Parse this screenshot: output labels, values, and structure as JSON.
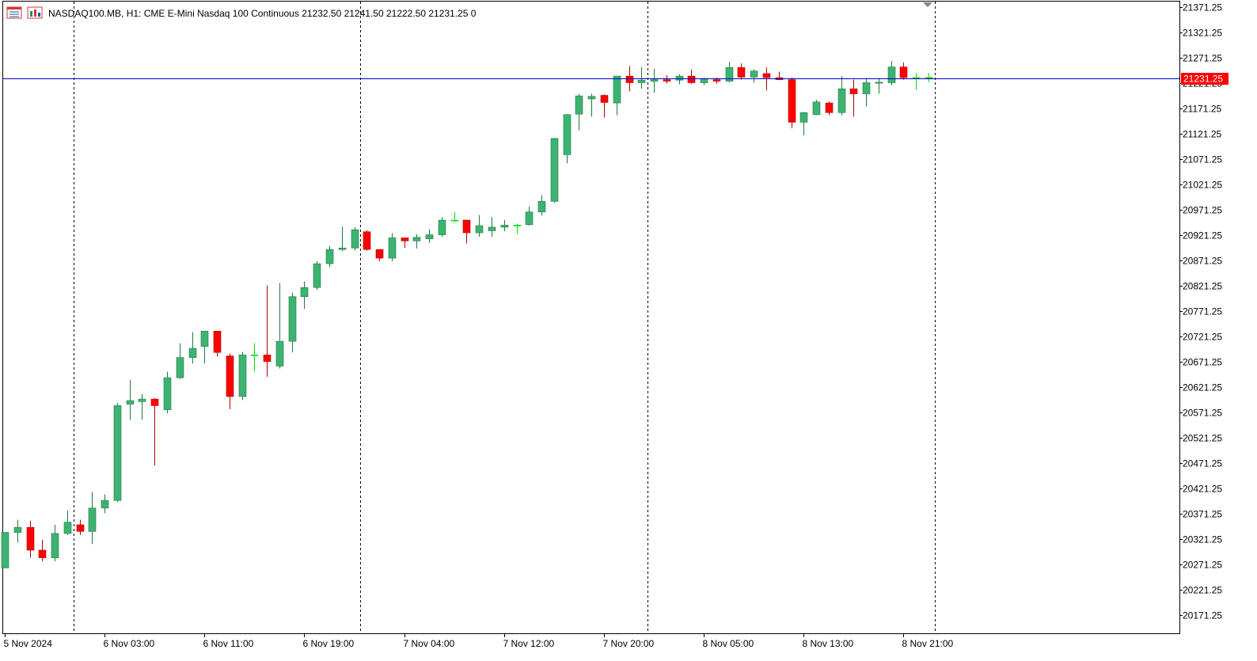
{
  "header": {
    "symbol": "NASDAQ100.MB",
    "timeframe": "H1:",
    "description": "CME E-Mini Nasdaq 100 Continuous",
    "ohlc": "21232.50 21241.50 21222.50 21231.25",
    "volume": "0"
  },
  "colors": {
    "bull": "#3cb371",
    "bear": "#ff0000",
    "wick_bull": "#1f7a3e",
    "wick_bear": "#b00000",
    "doji": "#00e000",
    "price_line": "#0000cd",
    "price_tag": "#ff0000",
    "grid": "#000000",
    "axis": "#000000"
  },
  "icons": [
    "chart-window-icon",
    "chart-properties-icon",
    "shift-marker-icon"
  ],
  "chart_data": {
    "type": "candlestick",
    "symbol": "NASDAQ100.MB",
    "timeframe": "H1",
    "current_price": 21231.25,
    "current_price_label": "21231.25",
    "y_range": [
      20136,
      21382
    ],
    "y_ticks": [
      "21371.25",
      "21321.25",
      "21271.25",
      "21221.25",
      "21171.25",
      "21121.25",
      "21071.25",
      "21021.25",
      "20971.25",
      "20921.25",
      "20871.25",
      "20821.25",
      "20771.25",
      "20721.25",
      "20671.25",
      "20621.25",
      "20571.25",
      "20521.25",
      "20471.25",
      "20421.25",
      "20371.25",
      "20321.25",
      "20271.25",
      "20221.25",
      "20171.25"
    ],
    "x_labels": [
      {
        "label": "5 Nov 2024",
        "bar": 0
      },
      {
        "label": "6 Nov 03:00",
        "bar": 8
      },
      {
        "label": "6 Nov 11:00",
        "bar": 16
      },
      {
        "label": "6 Nov 19:00",
        "bar": 24
      },
      {
        "label": "7 Nov 04:00",
        "bar": 32
      },
      {
        "label": "7 Nov 12:00",
        "bar": 40
      },
      {
        "label": "7 Nov 20:00",
        "bar": 48
      },
      {
        "label": "8 Nov 05:00",
        "bar": 56
      },
      {
        "label": "8 Nov 13:00",
        "bar": 64
      },
      {
        "label": "8 Nov 21:00",
        "bar": 72
      }
    ],
    "day_separators": [
      5.5,
      28.5,
      51.5,
      74.5
    ],
    "candles": [
      {
        "o": 20265,
        "h": 20335,
        "l": 20265,
        "c": 20335
      },
      {
        "o": 20335,
        "h": 20360,
        "l": 20315,
        "c": 20345
      },
      {
        "o": 20345,
        "h": 20358,
        "l": 20285,
        "c": 20300
      },
      {
        "o": 20300,
        "h": 20320,
        "l": 20278,
        "c": 20285
      },
      {
        "o": 20285,
        "h": 20350,
        "l": 20278,
        "c": 20333
      },
      {
        "o": 20333,
        "h": 20378,
        "l": 20330,
        "c": 20355
      },
      {
        "o": 20350,
        "h": 20360,
        "l": 20330,
        "c": 20337
      },
      {
        "o": 20337,
        "h": 20415,
        "l": 20312,
        "c": 20383
      },
      {
        "o": 20383,
        "h": 20410,
        "l": 20373,
        "c": 20398
      },
      {
        "o": 20398,
        "h": 20590,
        "l": 20395,
        "c": 20585
      },
      {
        "o": 20588,
        "h": 20636,
        "l": 20557,
        "c": 20595
      },
      {
        "o": 20593,
        "h": 20608,
        "l": 20557,
        "c": 20598
      },
      {
        "o": 20598,
        "h": 20600,
        "l": 20467,
        "c": 20585
      },
      {
        "o": 20577,
        "h": 20652,
        "l": 20570,
        "c": 20640
      },
      {
        "o": 20640,
        "h": 20708,
        "l": 20638,
        "c": 20680
      },
      {
        "o": 20680,
        "h": 20730,
        "l": 20668,
        "c": 20698
      },
      {
        "o": 20702,
        "h": 20730,
        "l": 20668,
        "c": 20732
      },
      {
        "o": 20732,
        "h": 20732,
        "l": 20682,
        "c": 20690
      },
      {
        "o": 20683,
        "h": 20688,
        "l": 20578,
        "c": 20603
      },
      {
        "o": 20603,
        "h": 20691,
        "l": 20596,
        "c": 20685
      },
      {
        "o": 20684,
        "h": 20708,
        "l": 20653,
        "c": 20685
      },
      {
        "o": 20685,
        "h": 20822,
        "l": 20642,
        "c": 20672
      },
      {
        "o": 20663,
        "h": 20827,
        "l": 20658,
        "c": 20712
      },
      {
        "o": 20712,
        "h": 20808,
        "l": 20690,
        "c": 20800
      },
      {
        "o": 20800,
        "h": 20830,
        "l": 20776,
        "c": 20818
      },
      {
        "o": 20818,
        "h": 20870,
        "l": 20813,
        "c": 20865
      },
      {
        "o": 20865,
        "h": 20900,
        "l": 20858,
        "c": 20893
      },
      {
        "o": 20893,
        "h": 20938,
        "l": 20890,
        "c": 20896
      },
      {
        "o": 20896,
        "h": 20937,
        "l": 20891,
        "c": 20932
      },
      {
        "o": 20928,
        "h": 20931,
        "l": 20891,
        "c": 20893
      },
      {
        "o": 20893,
        "h": 20893,
        "l": 20870,
        "c": 20876
      },
      {
        "o": 20876,
        "h": 20925,
        "l": 20870,
        "c": 20916
      },
      {
        "o": 20916,
        "h": 20916,
        "l": 20896,
        "c": 20910
      },
      {
        "o": 20910,
        "h": 20923,
        "l": 20895,
        "c": 20917
      },
      {
        "o": 20914,
        "h": 20933,
        "l": 20906,
        "c": 20922
      },
      {
        "o": 20922,
        "h": 20957,
        "l": 20918,
        "c": 20951
      },
      {
        "o": 20951,
        "h": 20967,
        "l": 20947,
        "c": 20951
      },
      {
        "o": 20951,
        "h": 20951,
        "l": 20905,
        "c": 20926
      },
      {
        "o": 20926,
        "h": 20961,
        "l": 20918,
        "c": 20940
      },
      {
        "o": 20930,
        "h": 20957,
        "l": 20918,
        "c": 20937
      },
      {
        "o": 20937,
        "h": 20951,
        "l": 20929,
        "c": 20941
      },
      {
        "o": 20941,
        "h": 20944,
        "l": 20924,
        "c": 20941
      },
      {
        "o": 20942,
        "h": 20978,
        "l": 20940,
        "c": 20967
      },
      {
        "o": 20967,
        "h": 21000,
        "l": 20960,
        "c": 20988
      },
      {
        "o": 20988,
        "h": 21113,
        "l": 20985,
        "c": 21112
      },
      {
        "o": 21080,
        "h": 21160,
        "l": 21063,
        "c": 21159
      },
      {
        "o": 21160,
        "h": 21200,
        "l": 21128,
        "c": 21196
      },
      {
        "o": 21190,
        "h": 21200,
        "l": 21155,
        "c": 21195
      },
      {
        "o": 21197,
        "h": 21199,
        "l": 21153,
        "c": 21183
      },
      {
        "o": 21182,
        "h": 21235,
        "l": 21158,
        "c": 21235
      },
      {
        "o": 21235,
        "h": 21255,
        "l": 21205,
        "c": 21222
      },
      {
        "o": 21222,
        "h": 21253,
        "l": 21210,
        "c": 21227
      },
      {
        "o": 21225,
        "h": 21249,
        "l": 21202,
        "c": 21228
      },
      {
        "o": 21228,
        "h": 21237,
        "l": 21220,
        "c": 21225
      },
      {
        "o": 21227,
        "h": 21239,
        "l": 21219,
        "c": 21235
      },
      {
        "o": 21235,
        "h": 21248,
        "l": 21220,
        "c": 21222
      },
      {
        "o": 21222,
        "h": 21232,
        "l": 21217,
        "c": 21230
      },
      {
        "o": 21228,
        "h": 21232,
        "l": 21220,
        "c": 21225
      },
      {
        "o": 21225,
        "h": 21263,
        "l": 21223,
        "c": 21252
      },
      {
        "o": 21252,
        "h": 21260,
        "l": 21228,
        "c": 21233
      },
      {
        "o": 21233,
        "h": 21248,
        "l": 21222,
        "c": 21245
      },
      {
        "o": 21240,
        "h": 21252,
        "l": 21207,
        "c": 21232
      },
      {
        "o": 21232,
        "h": 21244,
        "l": 21227,
        "c": 21228
      },
      {
        "o": 21228,
        "h": 21232,
        "l": 21132,
        "c": 21144
      },
      {
        "o": 21144,
        "h": 21164,
        "l": 21118,
        "c": 21163
      },
      {
        "o": 21159,
        "h": 21188,
        "l": 21158,
        "c": 21184
      },
      {
        "o": 21182,
        "h": 21185,
        "l": 21158,
        "c": 21163
      },
      {
        "o": 21163,
        "h": 21235,
        "l": 21158,
        "c": 21210
      },
      {
        "o": 21210,
        "h": 21228,
        "l": 21155,
        "c": 21200
      },
      {
        "o": 21200,
        "h": 21230,
        "l": 21175,
        "c": 21222
      },
      {
        "o": 21221,
        "h": 21231,
        "l": 21200,
        "c": 21223
      },
      {
        "o": 21222,
        "h": 21265,
        "l": 21217,
        "c": 21253
      },
      {
        "o": 21253,
        "h": 21262,
        "l": 21228,
        "c": 21232
      },
      {
        "o": 21232,
        "h": 21241,
        "l": 21208,
        "c": 21231
      },
      {
        "o": 21232.5,
        "h": 21241.5,
        "l": 21222.5,
        "c": 21231.25
      }
    ]
  }
}
